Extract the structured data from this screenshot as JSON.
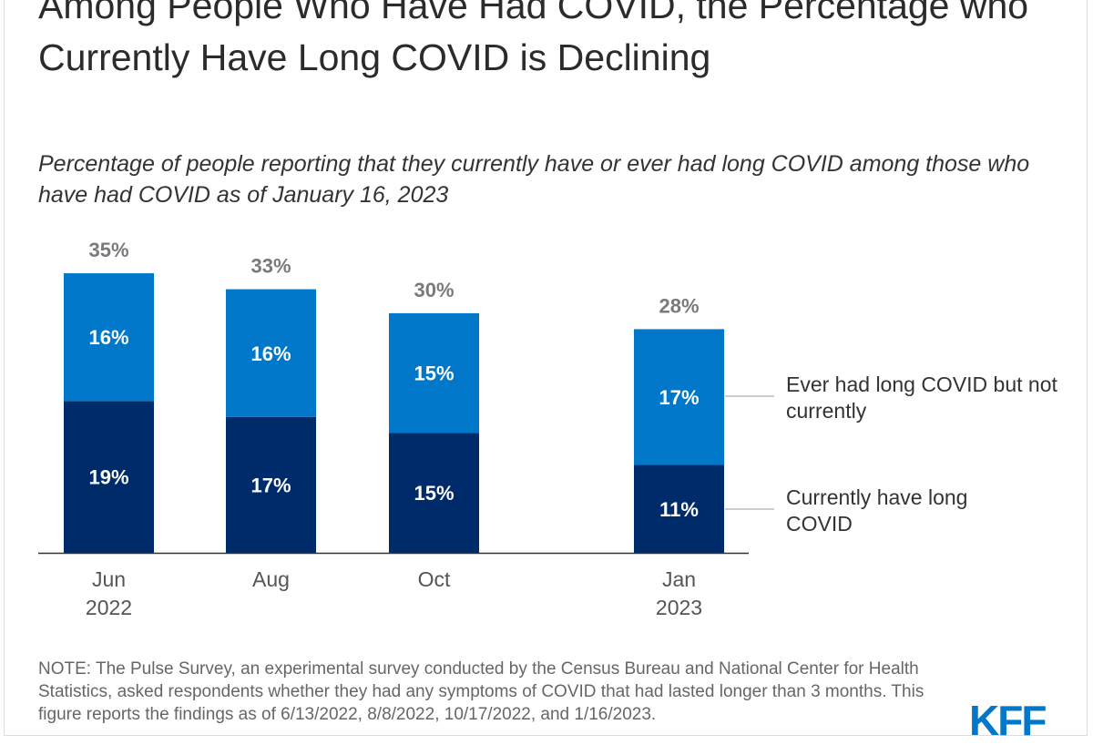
{
  "title": "Among People Who Have Had COVID, the Percentage who Currently Have Long COVID is Declining",
  "subtitle": "Percentage of people reporting that they currently have or ever had long COVID among those who have had COVID as of January 16, 2023",
  "note": "NOTE: The Pulse Survey, an experimental survey conducted by the Census Bureau and National Center for Health Statistics, asked respondents whether they had any symptoms of COVID that had lasted longer than 3 months. This figure reports the findings as of 6/13/2022, 8/8/2022, 10/17/2022, and 1/16/2023.",
  "logo": "KFF",
  "chart_data": {
    "type": "bar",
    "stacked": true,
    "categories": [
      [
        "Jun",
        "2022"
      ],
      [
        "Aug",
        ""
      ],
      [
        "Oct",
        ""
      ],
      [
        "Jan",
        "2023"
      ]
    ],
    "series": [
      {
        "name": "Currently have long COVID",
        "values": [
          19,
          17,
          15,
          11
        ],
        "labels": [
          "19%",
          "17%",
          "15%",
          "11%"
        ],
        "color": "#002b6b"
      },
      {
        "name": "Ever had long COVID but not currently",
        "values": [
          16,
          16,
          15,
          17
        ],
        "labels": [
          "16%",
          "16%",
          "15%",
          "17%"
        ],
        "color": "#0077c8"
      }
    ],
    "totals": [
      35,
      33,
      30,
      28
    ],
    "total_labels": [
      "35%",
      "33%",
      "30%",
      "28%"
    ],
    "legend_labels": [
      "Ever had long COVID but not currently",
      "Currently have long COVID"
    ],
    "ylim": [
      0,
      35
    ],
    "grid": false,
    "legend": "right"
  }
}
